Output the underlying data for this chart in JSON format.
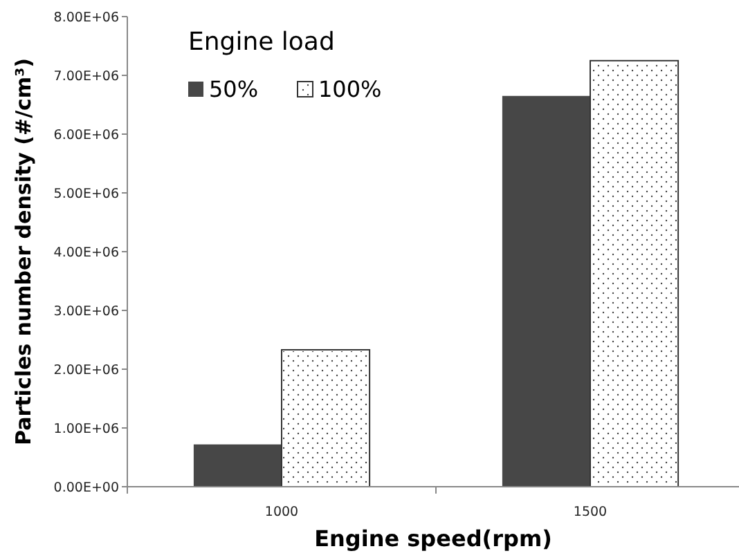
{
  "chart_data": {
    "type": "bar",
    "xlabel": "Engine speed(rpm)",
    "ylabel": "Particles number density (#/cm³)",
    "legend_title": "Engine load",
    "categories": [
      "1000",
      "1500"
    ],
    "series": [
      {
        "name": "50%",
        "color": "#474747",
        "values": [
          720000,
          6650000
        ]
      },
      {
        "name": "100%",
        "color": "#ffffff",
        "values": [
          2330000,
          7250000
        ]
      }
    ],
    "ylim": [
      0,
      8000000
    ],
    "yticks": [
      {
        "value": 0,
        "label": "0.00E+00"
      },
      {
        "value": 1000000,
        "label": "1.00E+06"
      },
      {
        "value": 2000000,
        "label": "2.00E+06"
      },
      {
        "value": 3000000,
        "label": "3.00E+06"
      },
      {
        "value": 4000000,
        "label": "4.00E+06"
      },
      {
        "value": 5000000,
        "label": "5.00E+06"
      },
      {
        "value": 6000000,
        "label": "6.00E+06"
      },
      {
        "value": 7000000,
        "label": "7.00E+06"
      },
      {
        "value": 8000000,
        "label": "8.00E+06"
      }
    ],
    "grid": false,
    "legend": "top left"
  }
}
